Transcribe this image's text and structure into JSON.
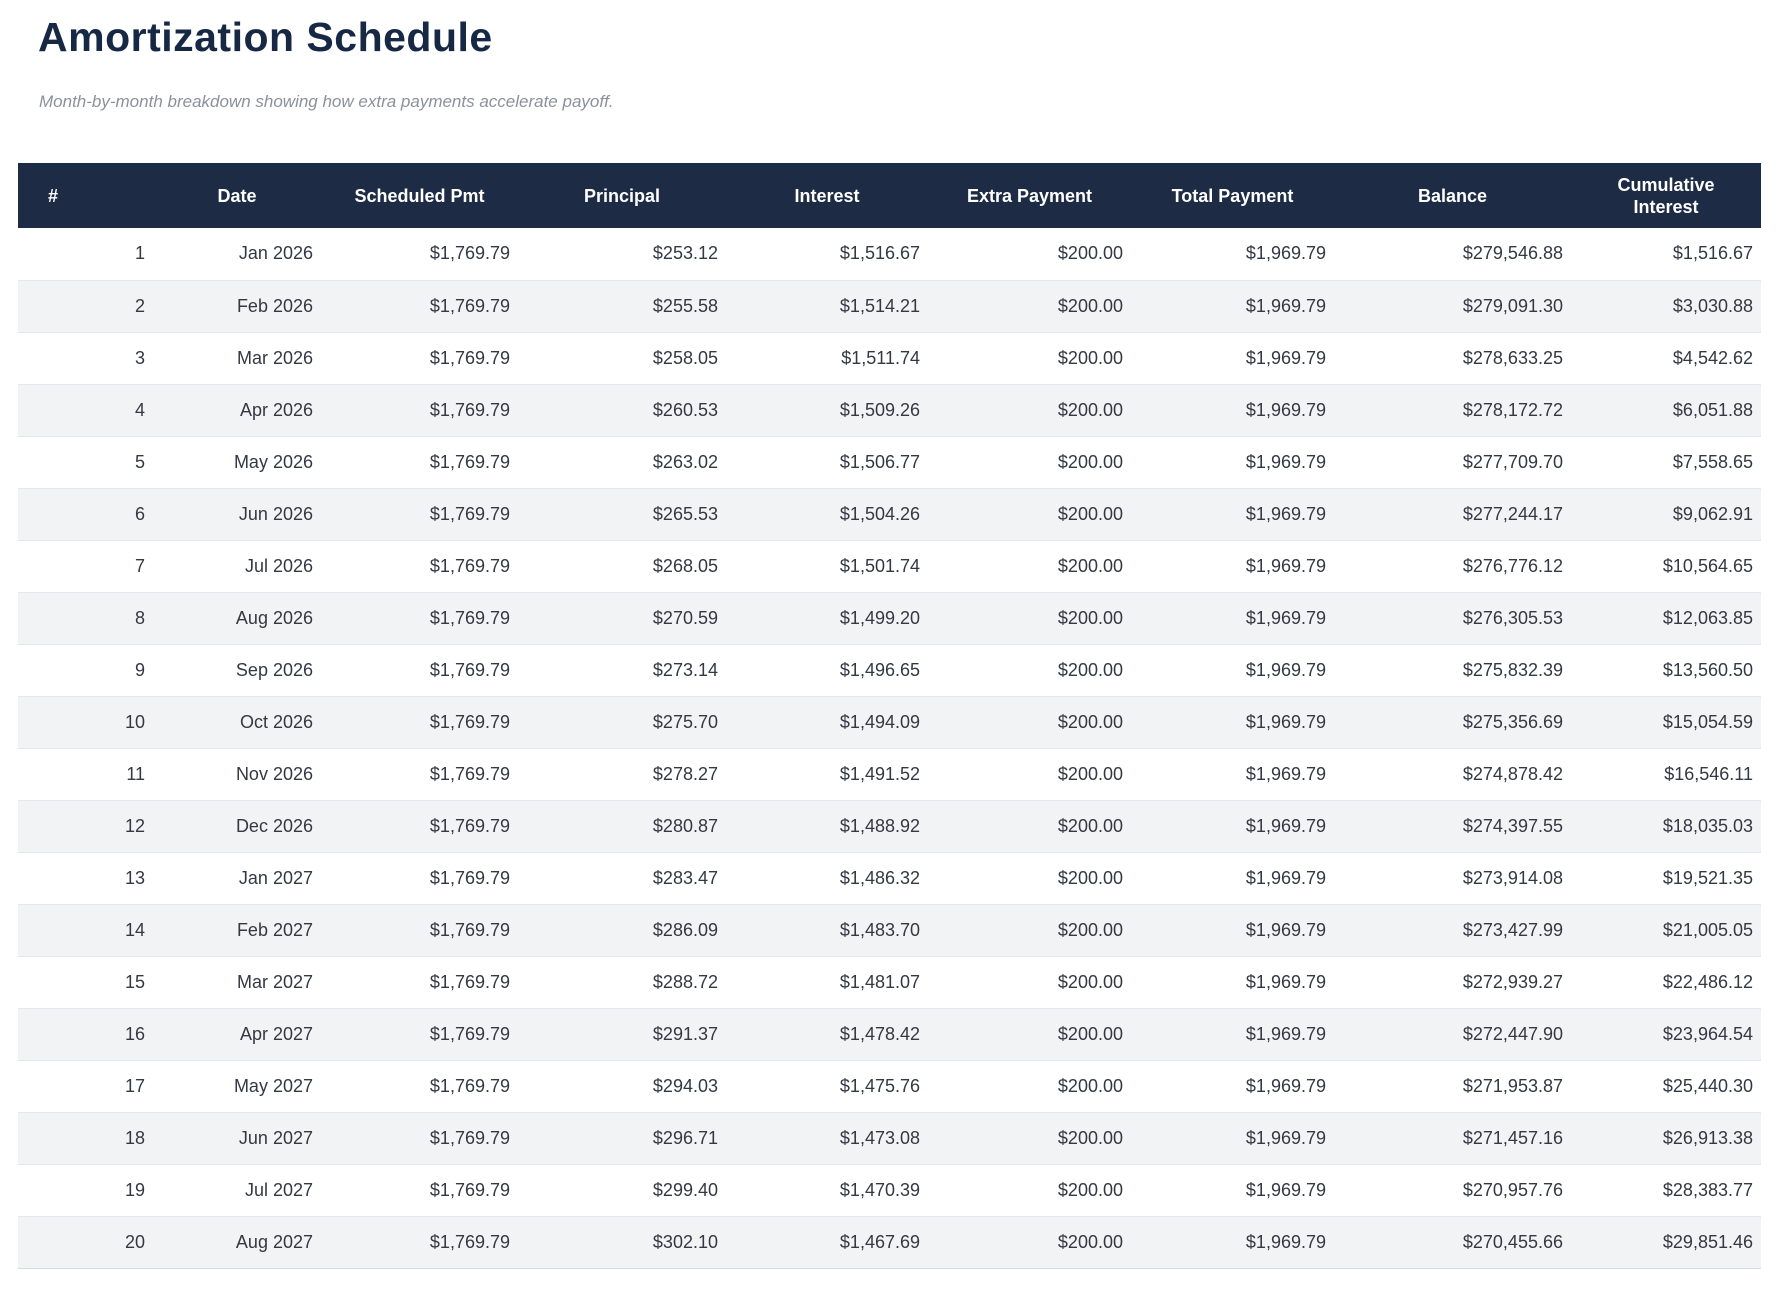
{
  "page": {
    "title": "Amortization Schedule",
    "subtitle": "Month-by-month breakdown showing how extra payments accelerate payoff."
  },
  "colors": {
    "header_background": "#1d2b45",
    "header_text": "#ffffff",
    "title_text": "#162844",
    "subtitle_text": "#8b919c",
    "row_alternate_background": "#f2f3f5",
    "row_border": "#e6e7ea",
    "cell_text": "#333842"
  },
  "table": {
    "columns": [
      "#",
      "Date",
      "Scheduled Pmt",
      "Principal",
      "Interest",
      "Extra Payment",
      "Total Payment",
      "Balance",
      "Cumulative Interest"
    ],
    "rows": [
      [
        "1",
        "Jan 2026",
        "$1,769.79",
        "$253.12",
        "$1,516.67",
        "$200.00",
        "$1,969.79",
        "$279,546.88",
        "$1,516.67"
      ],
      [
        "2",
        "Feb 2026",
        "$1,769.79",
        "$255.58",
        "$1,514.21",
        "$200.00",
        "$1,969.79",
        "$279,091.30",
        "$3,030.88"
      ],
      [
        "3",
        "Mar 2026",
        "$1,769.79",
        "$258.05",
        "$1,511.74",
        "$200.00",
        "$1,969.79",
        "$278,633.25",
        "$4,542.62"
      ],
      [
        "4",
        "Apr 2026",
        "$1,769.79",
        "$260.53",
        "$1,509.26",
        "$200.00",
        "$1,969.79",
        "$278,172.72",
        "$6,051.88"
      ],
      [
        "5",
        "May 2026",
        "$1,769.79",
        "$263.02",
        "$1,506.77",
        "$200.00",
        "$1,969.79",
        "$277,709.70",
        "$7,558.65"
      ],
      [
        "6",
        "Jun 2026",
        "$1,769.79",
        "$265.53",
        "$1,504.26",
        "$200.00",
        "$1,969.79",
        "$277,244.17",
        "$9,062.91"
      ],
      [
        "7",
        "Jul 2026",
        "$1,769.79",
        "$268.05",
        "$1,501.74",
        "$200.00",
        "$1,969.79",
        "$276,776.12",
        "$10,564.65"
      ],
      [
        "8",
        "Aug 2026",
        "$1,769.79",
        "$270.59",
        "$1,499.20",
        "$200.00",
        "$1,969.79",
        "$276,305.53",
        "$12,063.85"
      ],
      [
        "9",
        "Sep 2026",
        "$1,769.79",
        "$273.14",
        "$1,496.65",
        "$200.00",
        "$1,969.79",
        "$275,832.39",
        "$13,560.50"
      ],
      [
        "10",
        "Oct 2026",
        "$1,769.79",
        "$275.70",
        "$1,494.09",
        "$200.00",
        "$1,969.79",
        "$275,356.69",
        "$15,054.59"
      ],
      [
        "11",
        "Nov 2026",
        "$1,769.79",
        "$278.27",
        "$1,491.52",
        "$200.00",
        "$1,969.79",
        "$274,878.42",
        "$16,546.11"
      ],
      [
        "12",
        "Dec 2026",
        "$1,769.79",
        "$280.87",
        "$1,488.92",
        "$200.00",
        "$1,969.79",
        "$274,397.55",
        "$18,035.03"
      ],
      [
        "13",
        "Jan 2027",
        "$1,769.79",
        "$283.47",
        "$1,486.32",
        "$200.00",
        "$1,969.79",
        "$273,914.08",
        "$19,521.35"
      ],
      [
        "14",
        "Feb 2027",
        "$1,769.79",
        "$286.09",
        "$1,483.70",
        "$200.00",
        "$1,969.79",
        "$273,427.99",
        "$21,005.05"
      ],
      [
        "15",
        "Mar 2027",
        "$1,769.79",
        "$288.72",
        "$1,481.07",
        "$200.00",
        "$1,969.79",
        "$272,939.27",
        "$22,486.12"
      ],
      [
        "16",
        "Apr 2027",
        "$1,769.79",
        "$291.37",
        "$1,478.42",
        "$200.00",
        "$1,969.79",
        "$272,447.90",
        "$23,964.54"
      ],
      [
        "17",
        "May 2027",
        "$1,769.79",
        "$294.03",
        "$1,475.76",
        "$200.00",
        "$1,969.79",
        "$271,953.87",
        "$25,440.30"
      ],
      [
        "18",
        "Jun 2027",
        "$1,769.79",
        "$296.71",
        "$1,473.08",
        "$200.00",
        "$1,969.79",
        "$271,457.16",
        "$26,913.38"
      ],
      [
        "19",
        "Jul 2027",
        "$1,769.79",
        "$299.40",
        "$1,470.39",
        "$200.00",
        "$1,969.79",
        "$270,957.76",
        "$28,383.77"
      ],
      [
        "20",
        "Aug 2027",
        "$1,769.79",
        "$302.10",
        "$1,467.69",
        "$200.00",
        "$1,969.79",
        "$270,455.66",
        "$29,851.46"
      ]
    ]
  }
}
